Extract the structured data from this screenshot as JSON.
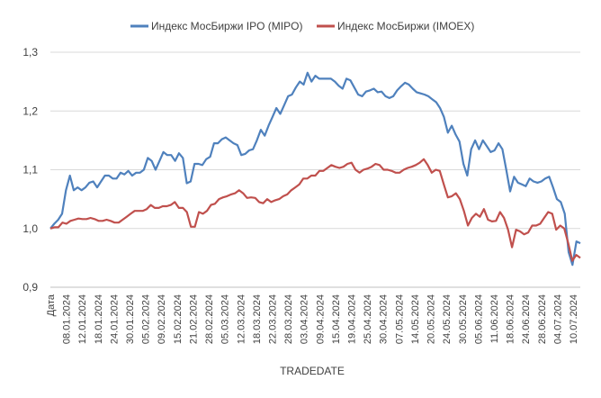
{
  "chart_data": {
    "type": "line",
    "xlabel": "TRADEDATE",
    "first_category_label": "Дата",
    "ylim": [
      0.9,
      1.3
    ],
    "yticks": [
      "0,9",
      "1,0",
      "1,1",
      "1,2",
      "1,3"
    ],
    "grid": true,
    "legend_position": "top",
    "x_tick_labels": [
      "08.01.2024",
      "12.01.2024",
      "18.01.2024",
      "24.01.2024",
      "30.01.2024",
      "05.02.2024",
      "09.02.2024",
      "15.02.2024",
      "21.02.2024",
      "28.02.2024",
      "05.03.2024",
      "12.03.2024",
      "18.03.2024",
      "22.03.2024",
      "28.03.2024",
      "03.04.2024",
      "09.04.2024",
      "15.04.2024",
      "19.04.2024",
      "25.04.2024",
      "30.04.2024",
      "07.05.2024",
      "14.05.2024",
      "20.05.2024",
      "24.05.2024",
      "30.05.2024",
      "05.06.2024",
      "11.06.2024",
      "18.06.2024",
      "24.06.2024",
      "28.06.2024",
      "04.07.2024",
      "10.07.2024"
    ],
    "series": [
      {
        "name": "Индекс МосБиржи  IPO (MIPO)",
        "color": "#4f81bd",
        "values": [
          1.0,
          1.008,
          1.015,
          1.025,
          1.065,
          1.09,
          1.065,
          1.07,
          1.065,
          1.07,
          1.078,
          1.08,
          1.07,
          1.08,
          1.09,
          1.09,
          1.085,
          1.085,
          1.095,
          1.092,
          1.098,
          1.09,
          1.095,
          1.095,
          1.1,
          1.12,
          1.115,
          1.1,
          1.115,
          1.13,
          1.125,
          1.125,
          1.115,
          1.128,
          1.12,
          1.077,
          1.08,
          1.11,
          1.11,
          1.108,
          1.118,
          1.122,
          1.145,
          1.145,
          1.152,
          1.155,
          1.15,
          1.145,
          1.142,
          1.125,
          1.127,
          1.133,
          1.135,
          1.15,
          1.168,
          1.158,
          1.175,
          1.19,
          1.205,
          1.195,
          1.21,
          1.225,
          1.228,
          1.24,
          1.25,
          1.245,
          1.265,
          1.25,
          1.26,
          1.255,
          1.255,
          1.255,
          1.255,
          1.25,
          1.243,
          1.238,
          1.255,
          1.252,
          1.24,
          1.228,
          1.225,
          1.233,
          1.235,
          1.238,
          1.232,
          1.233,
          1.225,
          1.222,
          1.225,
          1.235,
          1.242,
          1.248,
          1.245,
          1.238,
          1.232,
          1.23,
          1.228,
          1.225,
          1.22,
          1.215,
          1.205,
          1.19,
          1.163,
          1.175,
          1.16,
          1.148,
          1.11,
          1.09,
          1.135,
          1.15,
          1.135,
          1.15,
          1.14,
          1.13,
          1.133,
          1.145,
          1.135,
          1.1,
          1.063,
          1.088,
          1.078,
          1.075,
          1.072,
          1.085,
          1.08,
          1.078,
          1.08,
          1.085,
          1.088,
          1.07,
          1.05,
          1.045,
          1.025,
          0.96,
          0.938,
          0.978,
          0.975
        ]
      },
      {
        "name": "Индекс МосБиржи (IMOEX)",
        "color": "#c0504d",
        "values": [
          1.0,
          1.002,
          1.002,
          1.01,
          1.008,
          1.013,
          1.015,
          1.017,
          1.016,
          1.016,
          1.018,
          1.016,
          1.013,
          1.013,
          1.015,
          1.013,
          1.01,
          1.01,
          1.015,
          1.02,
          1.025,
          1.03,
          1.03,
          1.03,
          1.033,
          1.04,
          1.035,
          1.035,
          1.038,
          1.038,
          1.04,
          1.045,
          1.035,
          1.035,
          1.028,
          1.003,
          1.003,
          1.028,
          1.025,
          1.03,
          1.04,
          1.042,
          1.05,
          1.053,
          1.055,
          1.058,
          1.06,
          1.065,
          1.06,
          1.052,
          1.053,
          1.052,
          1.045,
          1.043,
          1.05,
          1.045,
          1.048,
          1.05,
          1.055,
          1.058,
          1.065,
          1.07,
          1.075,
          1.085,
          1.085,
          1.09,
          1.09,
          1.098,
          1.098,
          1.103,
          1.108,
          1.105,
          1.103,
          1.105,
          1.11,
          1.112,
          1.1,
          1.095,
          1.1,
          1.102,
          1.105,
          1.11,
          1.108,
          1.1,
          1.1,
          1.098,
          1.095,
          1.095,
          1.1,
          1.103,
          1.105,
          1.108,
          1.112,
          1.118,
          1.108,
          1.095,
          1.1,
          1.098,
          1.075,
          1.053,
          1.055,
          1.06,
          1.05,
          1.03,
          1.005,
          1.018,
          1.025,
          1.02,
          1.033,
          1.015,
          1.012,
          1.013,
          1.028,
          1.018,
          0.998,
          0.968,
          0.998,
          0.995,
          0.99,
          0.993,
          1.005,
          1.005,
          1.008,
          1.018,
          1.028,
          1.025,
          0.998,
          1.005,
          1.0,
          0.975,
          0.945,
          0.955,
          0.95
        ]
      }
    ]
  }
}
